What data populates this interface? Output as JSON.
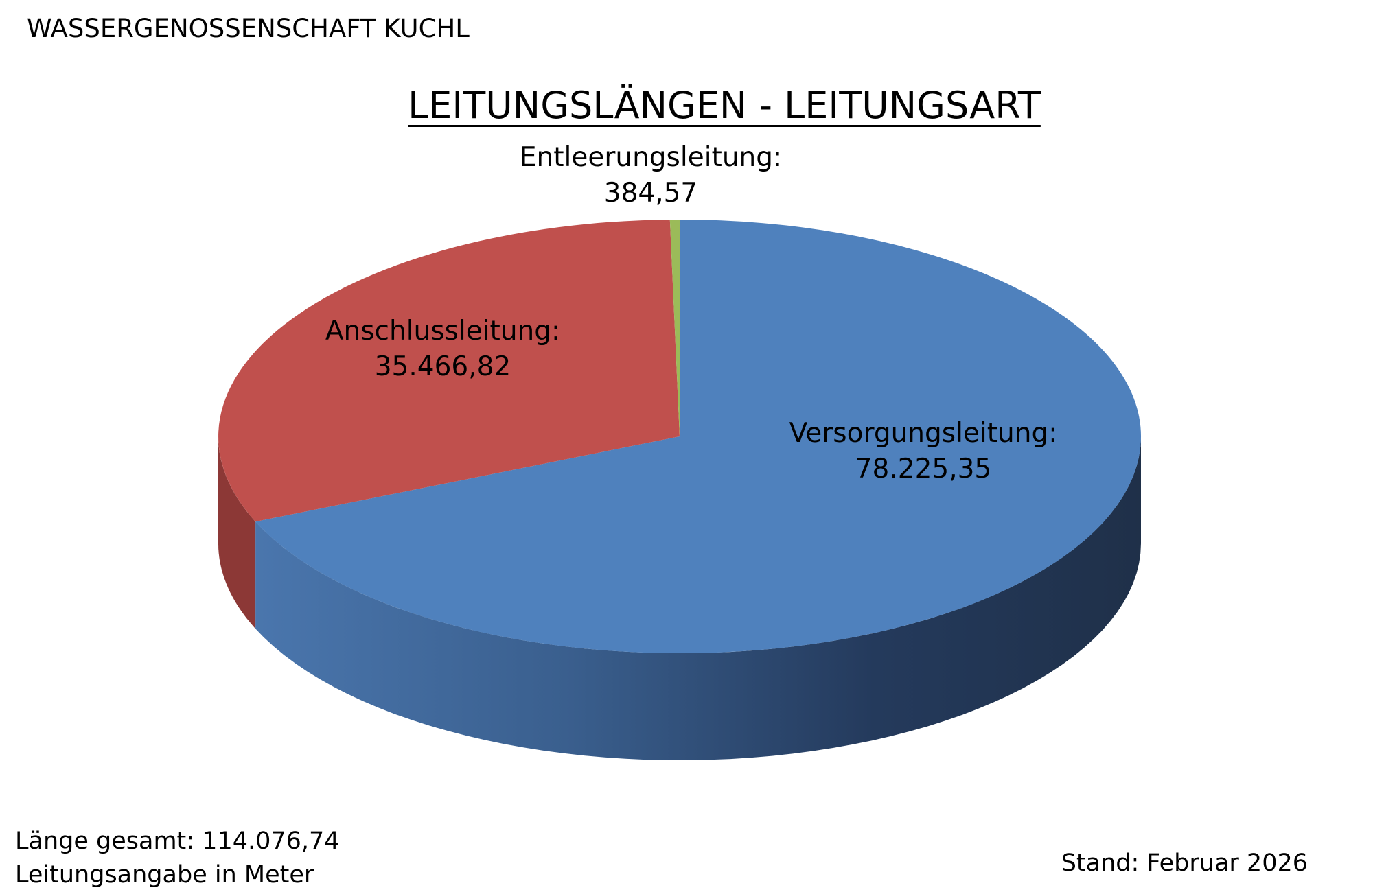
{
  "header": {
    "organization": "WASSERGENOSSENSCHAFT KUCHL"
  },
  "chart_data": {
    "type": "pie",
    "title": "LEITUNGSLÄNGEN - LEITUNGSART",
    "style": "3d",
    "categories": [
      "Versorgungsleitung:",
      "Anschlussleitung:",
      "Entleerungsleitung:"
    ],
    "values": [
      78225.35,
      35466.82,
      384.57
    ],
    "value_labels": [
      "78.225,35",
      "35.466,82",
      "384,57"
    ],
    "colors": [
      "#4f81bd",
      "#c0504d",
      "#9bbb59"
    ],
    "side_colors": [
      "#385d8a",
      "#8c3836",
      "#71893f"
    ]
  },
  "footer": {
    "total": "Länge gesamt: 114.076,74",
    "unit_note": "Leitungsangabe in Meter",
    "status": "Stand: Februar 2026"
  }
}
